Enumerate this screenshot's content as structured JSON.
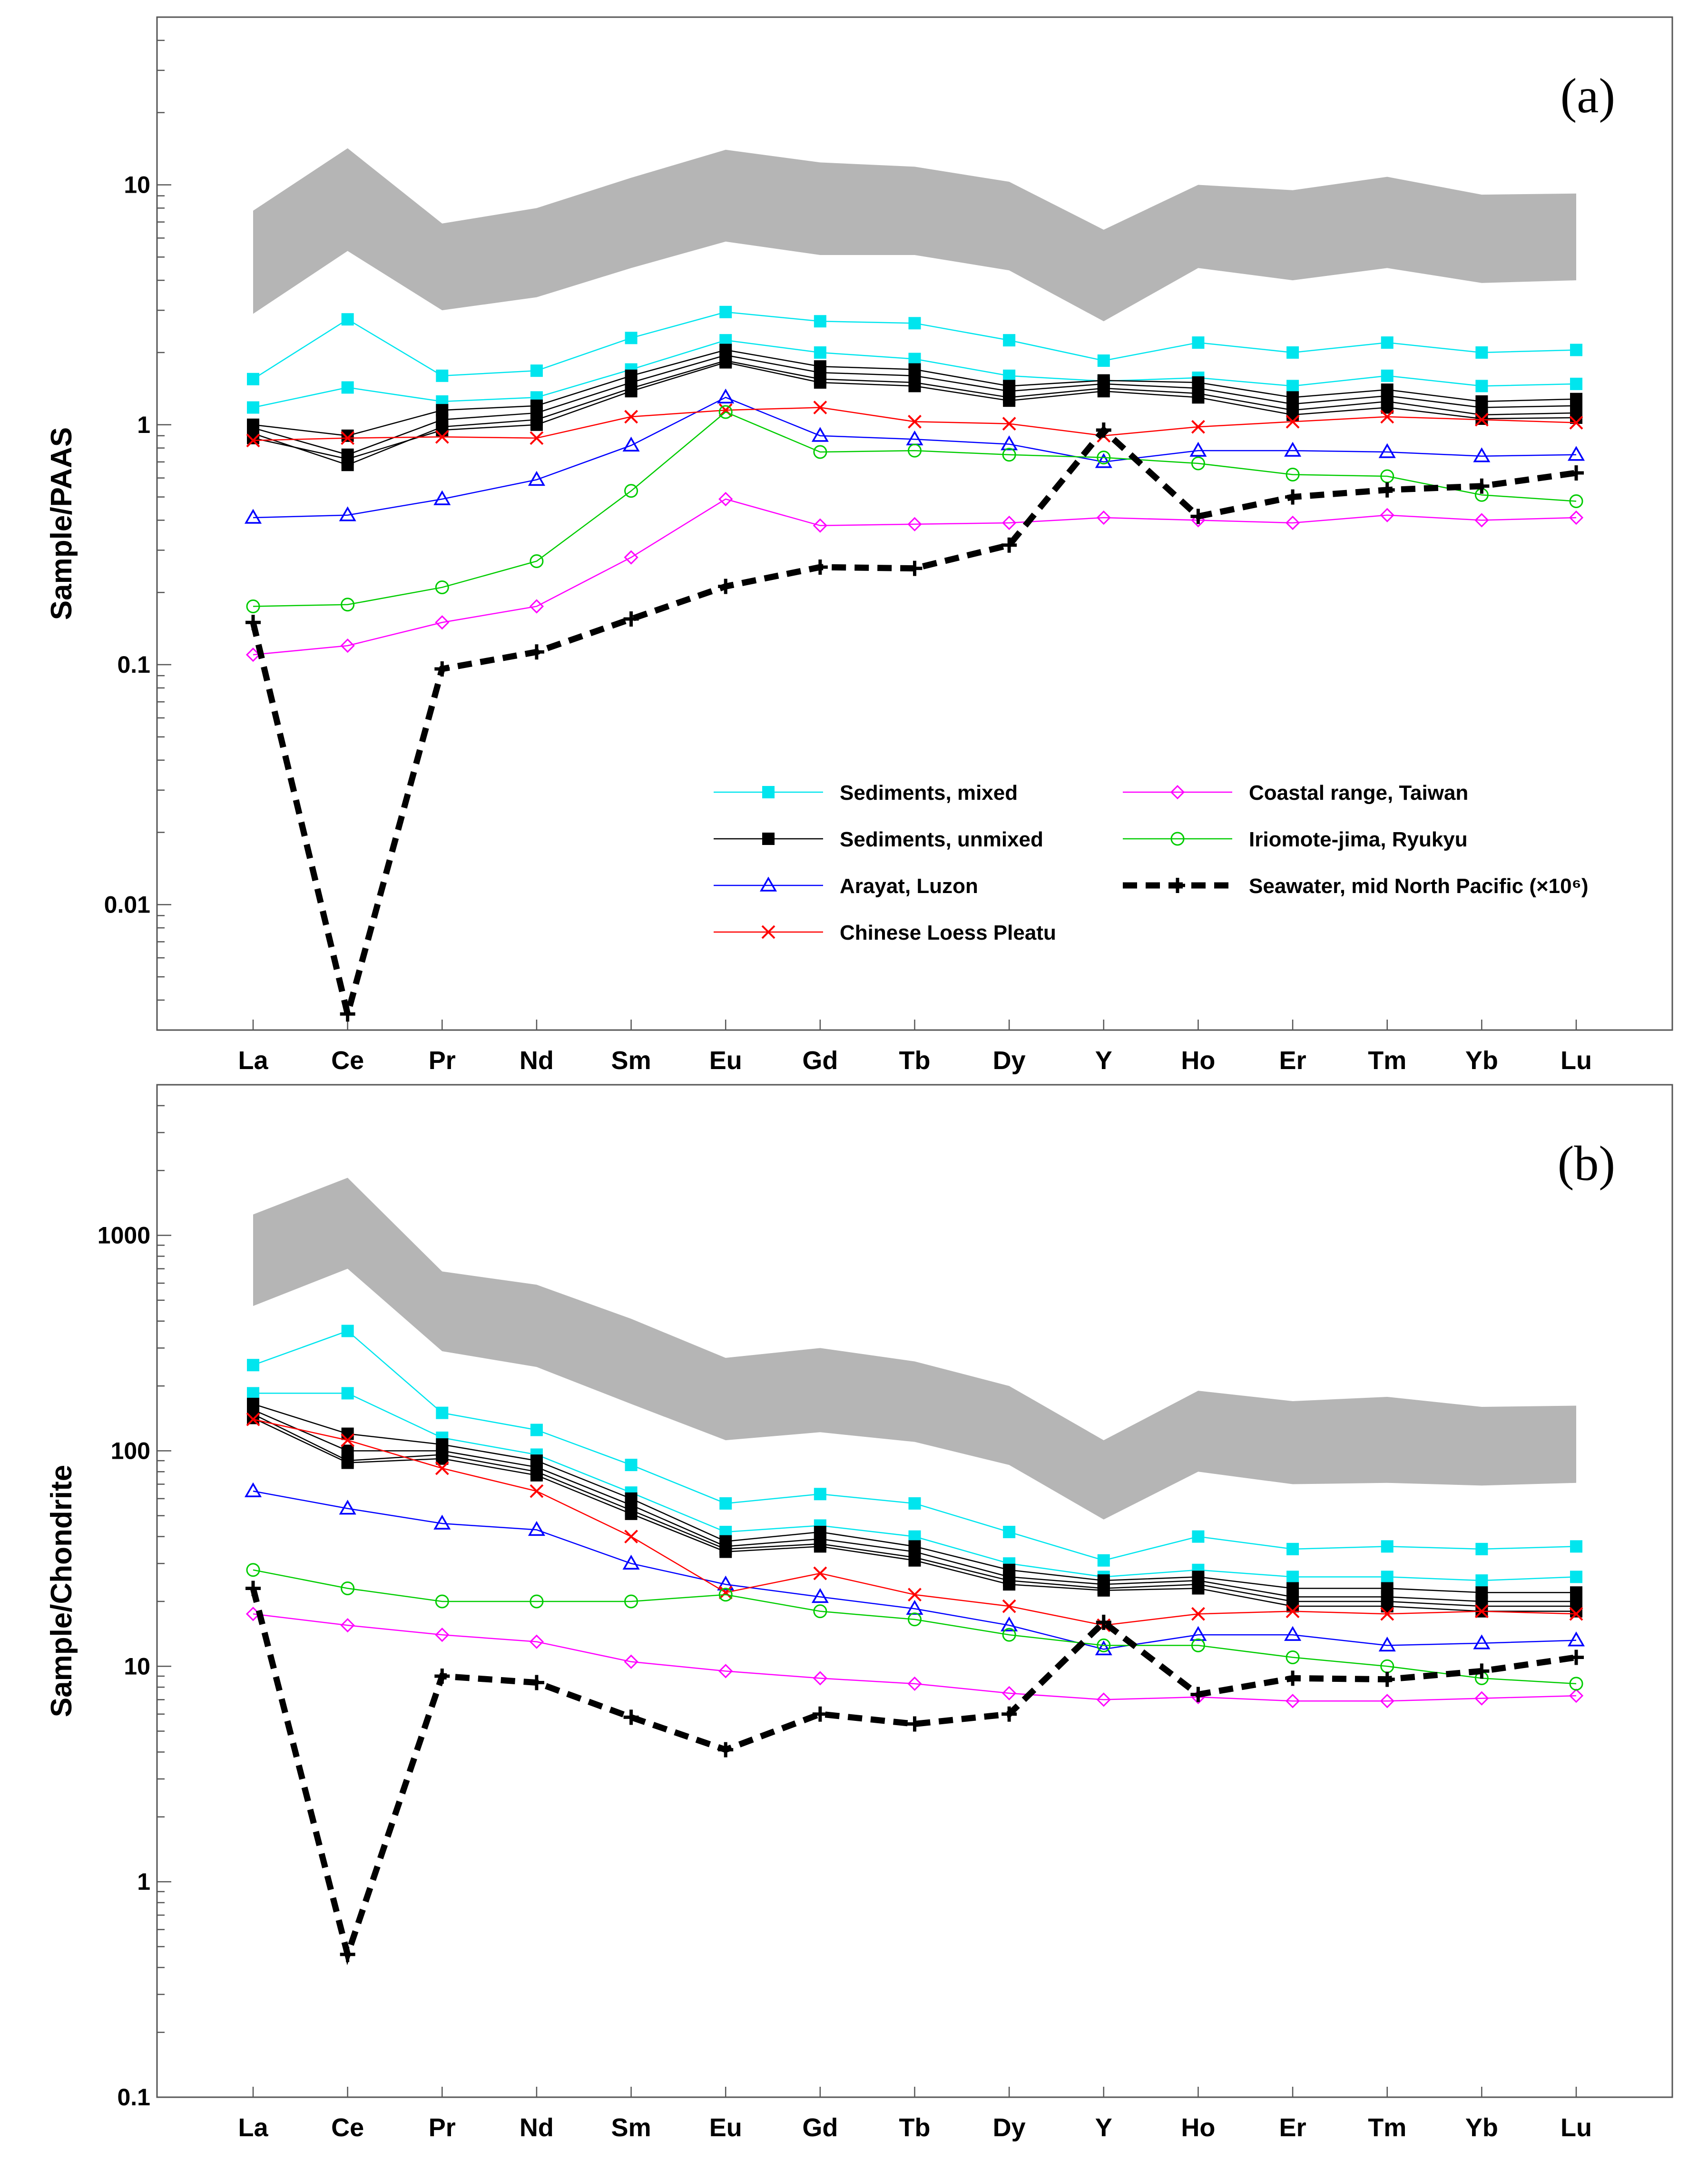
{
  "chart_data": [
    {
      "type": "line",
      "panel_tag": "(a)",
      "ylabel": "Sample/PAAS",
      "yscale": "log",
      "ylim": [
        0.003,
        50
      ],
      "ytick_labels": [
        "0.01",
        "0.1",
        "1",
        "10"
      ],
      "ytick_values": [
        0.01,
        0.1,
        1,
        10
      ],
      "categories": [
        "La",
        "Ce",
        "Pr",
        "Nd",
        "Sm",
        "Eu",
        "Gd",
        "Tb",
        "Dy",
        "Y",
        "Ho",
        "Er",
        "Tm",
        "Yb",
        "Lu"
      ],
      "band": {
        "name": "Range (grey band)",
        "upper": [
          7.8,
          14.2,
          6.9,
          8.0,
          10.7,
          14.0,
          12.4,
          11.9,
          10.3,
          6.5,
          10.0,
          9.5,
          10.8,
          9.1,
          9.2
        ],
        "lower": [
          2.9,
          5.3,
          3.0,
          3.4,
          4.5,
          5.8,
          5.1,
          5.1,
          4.4,
          2.7,
          4.5,
          4.0,
          4.5,
          3.9,
          4.0
        ]
      },
      "series": [
        {
          "name": "Sediments, mixed",
          "values": [
            1.55,
            2.75,
            1.6,
            1.68,
            2.3,
            2.95,
            2.7,
            2.65,
            2.25,
            1.85,
            2.2,
            2.0,
            2.2,
            2.0,
            2.05
          ]
        },
        {
          "name": "Sediments, mixed",
          "values": [
            1.18,
            1.43,
            1.25,
            1.3,
            1.7,
            2.25,
            2.0,
            1.88,
            1.6,
            1.52,
            1.57,
            1.45,
            1.6,
            1.45,
            1.48
          ]
        },
        {
          "name": "Sediments, unmixed",
          "values": [
            1.0,
            0.9,
            1.15,
            1.2,
            1.6,
            2.05,
            1.75,
            1.7,
            1.45,
            1.53,
            1.5,
            1.3,
            1.4,
            1.25,
            1.28
          ]
        },
        {
          "name": "Sediments, unmixed",
          "values": [
            0.97,
            0.75,
            1.05,
            1.12,
            1.5,
            1.95,
            1.65,
            1.6,
            1.38,
            1.48,
            1.42,
            1.22,
            1.32,
            1.18,
            1.2
          ]
        },
        {
          "name": "Sediments, unmixed",
          "values": [
            0.92,
            0.68,
            0.98,
            1.05,
            1.42,
            1.85,
            1.55,
            1.5,
            1.3,
            1.42,
            1.35,
            1.15,
            1.25,
            1.1,
            1.12
          ]
        },
        {
          "name": "Sediments, unmixed",
          "values": [
            0.88,
            0.72,
            0.95,
            1.0,
            1.38,
            1.82,
            1.5,
            1.45,
            1.26,
            1.38,
            1.3,
            1.1,
            1.18,
            1.06,
            1.07
          ]
        },
        {
          "name": "Arayat, Luzon",
          "values": [
            0.41,
            0.42,
            0.49,
            0.59,
            0.82,
            1.3,
            0.9,
            0.87,
            0.83,
            0.7,
            0.78,
            0.78,
            0.77,
            0.74,
            0.75
          ]
        },
        {
          "name": "Chinese Loess Pleatu",
          "values": [
            0.86,
            0.88,
            0.89,
            0.88,
            1.08,
            1.15,
            1.18,
            1.03,
            1.01,
            0.9,
            0.98,
            1.03,
            1.08,
            1.05,
            1.02
          ]
        },
        {
          "name": "Coastal range, Taiwan",
          "values": [
            0.11,
            0.12,
            0.15,
            0.175,
            0.28,
            0.49,
            0.38,
            0.385,
            0.39,
            0.41,
            0.4,
            0.39,
            0.42,
            0.4,
            0.41
          ]
        },
        {
          "name": "Iriomote-jima, Ryukyu",
          "values": [
            0.175,
            0.178,
            0.21,
            0.27,
            0.53,
            1.13,
            0.77,
            0.78,
            0.75,
            0.73,
            0.69,
            0.62,
            0.61,
            0.51,
            0.48
          ]
        },
        {
          "name": "Seawater, mid North Pacific (×10⁶)",
          "values": [
            0.15,
            0.0035,
            0.096,
            0.113,
            0.155,
            0.212,
            0.255,
            0.252,
            0.315,
            0.95,
            0.415,
            0.5,
            0.535,
            0.555,
            0.63
          ]
        }
      ]
    },
    {
      "type": "line",
      "panel_tag": "(b)",
      "ylabel": "Sample/Chondrite",
      "yscale": "log",
      "ylim": [
        0.1,
        5000
      ],
      "ytick_labels": [
        "0.1",
        "1",
        "10",
        "100",
        "1000"
      ],
      "ytick_values": [
        0.1,
        1,
        10,
        100,
        1000
      ],
      "categories": [
        "La",
        "Ce",
        "Pr",
        "Nd",
        "Sm",
        "Eu",
        "Gd",
        "Tb",
        "Dy",
        "Y",
        "Ho",
        "Er",
        "Tm",
        "Yb",
        "Lu"
      ],
      "band": {
        "name": "Range (grey band)",
        "upper": [
          1250,
          1850,
          680,
          590,
          410,
          270,
          300,
          260,
          200,
          112,
          190,
          170,
          178,
          160,
          162
        ],
        "lower": [
          470,
          700,
          290,
          245,
          165,
          112,
          122,
          110,
          86,
          48,
          80,
          70,
          71,
          69,
          71
        ]
      },
      "series": [
        {
          "name": "Sediments, mixed",
          "values": [
            250,
            360,
            150,
            125,
            86,
            57,
            63,
            57,
            42,
            31,
            40,
            35,
            36,
            35,
            36
          ]
        },
        {
          "name": "Sediments, mixed",
          "values": [
            185,
            185,
            115,
            96,
            64,
            42,
            45,
            40,
            30,
            26,
            28,
            26,
            26,
            25,
            26
          ]
        },
        {
          "name": "Sediments, unmixed",
          "values": [
            165,
            120,
            107,
            90,
            60,
            38,
            42,
            36,
            28,
            25,
            26,
            23,
            23,
            22,
            22
          ]
        },
        {
          "name": "Sediments, unmixed",
          "values": [
            155,
            100,
            100,
            84,
            56,
            36,
            39,
            34,
            26,
            24,
            25,
            21,
            21,
            20,
            20
          ]
        },
        {
          "name": "Sediments, unmixed",
          "values": [
            148,
            90,
            96,
            80,
            53,
            35,
            37,
            32,
            25,
            23,
            24,
            20,
            20,
            19,
            19
          ]
        },
        {
          "name": "Sediments, unmixed",
          "values": [
            142,
            88,
            92,
            77,
            51,
            34,
            36,
            31,
            24,
            22.5,
            23,
            19,
            19,
            18,
            18
          ]
        },
        {
          "name": "Arayat, Luzon",
          "values": [
            65,
            54,
            46,
            43,
            30,
            24,
            21,
            18.5,
            15.5,
            12,
            14,
            14,
            12.5,
            12.8,
            13.2
          ]
        },
        {
          "name": "Chinese Loess Pleatu",
          "values": [
            140,
            112,
            83,
            65,
            40,
            22,
            27,
            21.5,
            19,
            15.5,
            17.5,
            18,
            17.5,
            18,
            17.5
          ]
        },
        {
          "name": "Coastal range, Taiwan",
          "values": [
            17.5,
            15.5,
            14,
            13,
            10.5,
            9.5,
            8.8,
            8.3,
            7.5,
            7.0,
            7.2,
            6.9,
            6.9,
            7.1,
            7.3
          ]
        },
        {
          "name": "Iriomote-jima, Ryukyu",
          "values": [
            28,
            23,
            20,
            20,
            20,
            21.5,
            18,
            16.5,
            14,
            12.5,
            12.5,
            11,
            10,
            8.8,
            8.3
          ]
        },
        {
          "name": "Seawater, mid North Pacific (×10⁶)",
          "values": [
            23,
            0.46,
            9,
            8.4,
            5.8,
            4.1,
            6,
            5.4,
            6,
            16,
            7.4,
            8.8,
            8.7,
            9.5,
            11
          ]
        }
      ]
    }
  ],
  "legend": [
    {
      "label": "Sediments, mixed",
      "color": "#00e5ee",
      "marker": "square-filled",
      "style": "solid"
    },
    {
      "label": "Sediments, unmixed",
      "color": "#000000",
      "marker": "square-filled",
      "style": "solid"
    },
    {
      "label": "Arayat, Luzon",
      "color": "#0000ff",
      "marker": "triangle-open",
      "style": "solid"
    },
    {
      "label": "Chinese Loess Pleatu",
      "color": "#ff0000",
      "marker": "x",
      "style": "solid"
    },
    {
      "label": "Coastal range, Taiwan",
      "color": "#ff00ff",
      "marker": "diamond-open",
      "style": "solid"
    },
    {
      "label": "Iriomote-jima, Ryukyu",
      "color": "#00cc00",
      "marker": "circle-open",
      "style": "solid"
    },
    {
      "label": "Seawater, mid North Pacific (×10⁶)",
      "color": "#000000",
      "marker": "plus",
      "style": "dashed"
    }
  ],
  "colors": {
    "band": "#b5b5b5",
    "Sediments, mixed": "#00e5ee",
    "Sediments, unmixed": "#000000",
    "Arayat, Luzon": "#0000ff",
    "Chinese Loess Pleatu": "#ff0000",
    "Coastal range, Taiwan": "#ff00ff",
    "Iriomote-jima, Ryukyu": "#00cc00",
    "Seawater": "#000000"
  }
}
